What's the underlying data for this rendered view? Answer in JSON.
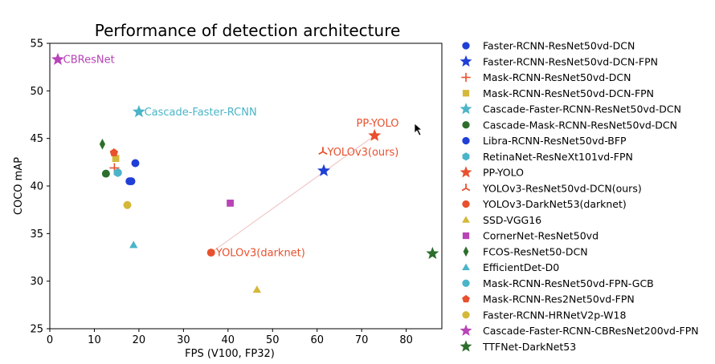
{
  "chart_data": {
    "type": "scatter",
    "title": "Performance of detection architecture",
    "xlabel": "FPS (V100, FP32)",
    "ylabel": "COCO mAP",
    "xlim": [
      0,
      88
    ],
    "ylim": [
      25,
      55
    ],
    "xticks": [
      0,
      10,
      20,
      30,
      40,
      50,
      60,
      70,
      80
    ],
    "yticks": [
      25,
      30,
      35,
      40,
      45,
      50,
      55
    ],
    "grid": false,
    "legend_position": "right, outside plot",
    "series": [
      {
        "name": "Faster-RCNN-ResNet50vd-DCN",
        "marker": "circle",
        "color": "#1f3fd6",
        "points": [
          [
            19.2,
            42.4
          ],
          [
            18.3,
            40.5
          ]
        ]
      },
      {
        "name": "Faster-RCNN-ResNet50vd-DCN-FPN",
        "marker": "star",
        "color": "#1f3fd6",
        "points": [
          [
            61.5,
            41.6
          ]
        ]
      },
      {
        "name": "Mask-RCNN-ResNet50vd-DCN",
        "marker": "plus",
        "color": "#e8502e",
        "points": [
          [
            14.5,
            41.9
          ]
        ]
      },
      {
        "name": "Mask-RCNN-ResNet50vd-DCN-FPN",
        "marker": "square",
        "color": "#d4b83a",
        "points": [
          [
            14.8,
            42.9
          ]
        ]
      },
      {
        "name": "Cascade-Faster-RCNN-ResNet50vd-DCN",
        "marker": "star",
        "color": "#4bb4c8",
        "points": [
          [
            20.0,
            47.8
          ]
        ]
      },
      {
        "name": "Cascade-Mask-RCNN-ResNet50vd-DCN",
        "marker": "circle",
        "color": "#2d6e2d",
        "points": [
          [
            12.6,
            41.3
          ]
        ]
      },
      {
        "name": "Libra-RCNN-ResNet50vd-BFP",
        "marker": "circle",
        "color": "#1f3fd6",
        "points": [
          [
            17.9,
            40.5
          ]
        ]
      },
      {
        "name": "RetinaNet-ResNeXt101vd-FPN",
        "marker": "hexagon",
        "color": "#4bb4c8",
        "points": [
          [
            15.2,
            41.4
          ]
        ]
      },
      {
        "name": "PP-YOLO",
        "marker": "star",
        "color": "#e8502e",
        "points": [
          [
            72.9,
            45.3
          ]
        ]
      },
      {
        "name": "YOLOv3-ResNet50vd-DCN(ours)",
        "marker": "tri_down",
        "color": "#e8502e",
        "points": [
          [
            61.3,
            43.6
          ]
        ]
      },
      {
        "name": "YOLOv3-DarkNet53(darknet)",
        "marker": "circle",
        "color": "#e8502e",
        "points": [
          [
            36.2,
            33.0
          ]
        ]
      },
      {
        "name": "SSD-VGG16",
        "marker": "triangle_up",
        "color": "#d4b83a",
        "points": [
          [
            46.5,
            29.1
          ]
        ]
      },
      {
        "name": "CornerNet-ResNet50vd",
        "marker": "square",
        "color": "#b844b8",
        "points": [
          [
            40.5,
            38.2
          ]
        ]
      },
      {
        "name": "FCOS-ResNet50-DCN",
        "marker": "diamond",
        "color": "#2d6e2d",
        "points": [
          [
            11.8,
            44.4
          ]
        ]
      },
      {
        "name": "EfficientDet-D0",
        "marker": "triangle_up",
        "color": "#4bb4c8",
        "points": [
          [
            18.8,
            33.8
          ]
        ]
      },
      {
        "name": "Mask-RCNN-ResNet50vd-FPN-GCB",
        "marker": "circle",
        "color": "#4bb4c8",
        "points": [
          [
            15.3,
            41.4
          ]
        ]
      },
      {
        "name": "Mask-RCNN-Res2Net50vd-FPN",
        "marker": "pentagon",
        "color": "#e8502e",
        "points": [
          [
            14.4,
            43.5
          ]
        ]
      },
      {
        "name": "Faster-RCNN-HRNetV2p-W18",
        "marker": "circle",
        "color": "#d4b83a",
        "points": [
          [
            17.4,
            38.0
          ]
        ]
      },
      {
        "name": "Cascade-Faster-RCNN-CBResNet200vd-FPN",
        "marker": "star",
        "color": "#b844b8",
        "points": [
          [
            1.8,
            53.3
          ]
        ]
      },
      {
        "name": "TTFNet-DarkNet53",
        "marker": "star",
        "color": "#2d6e2d",
        "points": [
          [
            85.9,
            32.9
          ]
        ]
      }
    ],
    "annotations": [
      {
        "text": "CBResNet",
        "x": 3.0,
        "y": 53.3,
        "color": "#b844b8"
      },
      {
        "text": "Cascade-Faster-RCNN",
        "x": 21.2,
        "y": 47.8,
        "color": "#4bb4c8"
      },
      {
        "text": "PP-YOLO",
        "x": 68.8,
        "y": 46.6,
        "color": "#e8502e"
      },
      {
        "text": "YOLOv3(ours)",
        "x": 62.3,
        "y": 43.6,
        "color": "#e8502e"
      },
      {
        "text": "YOLOv3(darknet)",
        "x": 37.3,
        "y": 33.0,
        "color": "#e8502e"
      }
    ],
    "connector": {
      "from": [
        36.2,
        33.0
      ],
      "to": [
        72.9,
        45.3
      ],
      "color": "#f0c8c8"
    }
  }
}
